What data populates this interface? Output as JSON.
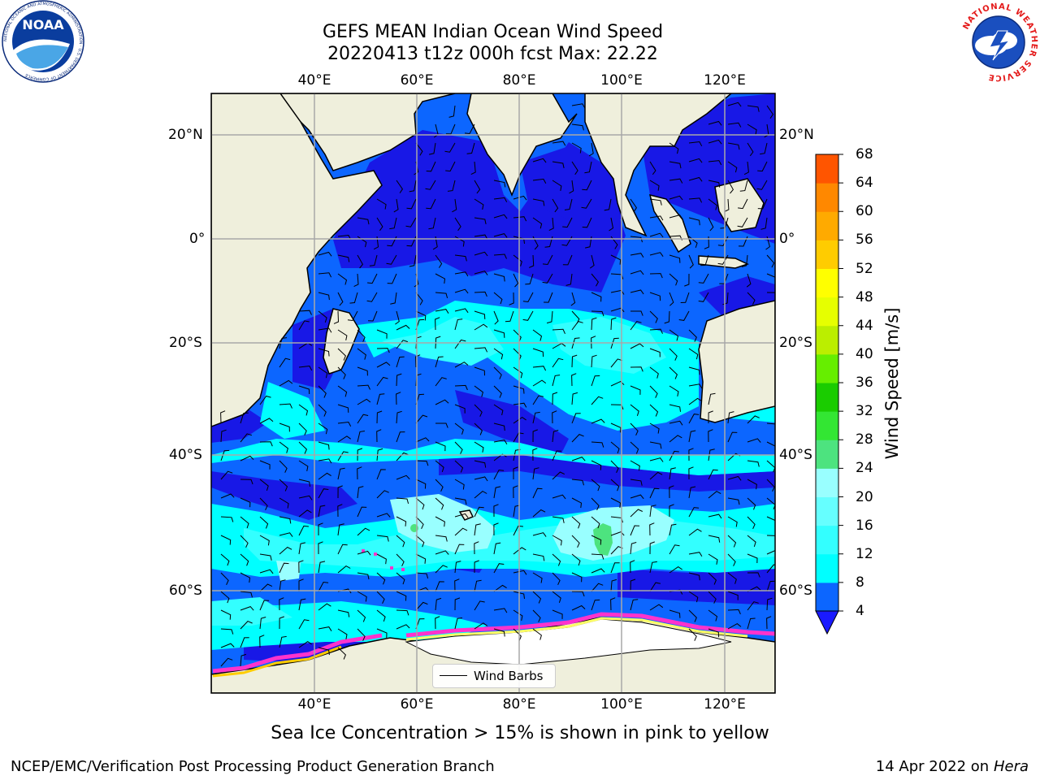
{
  "title": {
    "line1": "GEFS MEAN Indian Ocean Wind Speed",
    "line2": "20220413 t12z 000h fcst   Max: 22.22"
  },
  "map": {
    "lon_ticks": [
      "40°E",
      "60°E",
      "80°E",
      "100°E",
      "120°E"
    ],
    "lat_ticks": [
      "20°N",
      "0°",
      "20°S",
      "40°S",
      "60°S"
    ],
    "extent": {
      "lon": [
        20,
        130
      ],
      "lat": [
        -75,
        27
      ]
    },
    "land_color": "#efefdc",
    "ice_colors": [
      "#ff33cc",
      "#ff88aa",
      "#ffcc00",
      "#ffff66"
    ],
    "legend_label": "Wind Barbs"
  },
  "colorbar": {
    "label": "Wind Speed [m/s]",
    "levels": [
      "4",
      "8",
      "12",
      "16",
      "20",
      "24",
      "28",
      "32",
      "36",
      "40",
      "44",
      "48",
      "52",
      "56",
      "60",
      "64",
      "68"
    ],
    "colors": [
      "#0c66ff",
      "#00ffff",
      "#33ffff",
      "#66ffff",
      "#99ffff",
      "#4de37f",
      "#33e633",
      "#1acc00",
      "#66ee00",
      "#bbee00",
      "#e6ff00",
      "#ffff00",
      "#ffcc00",
      "#ffaa00",
      "#ff8800",
      "#ff5500",
      "#ff3300",
      "#ff0000"
    ],
    "extend_color": "#1a1aff"
  },
  "logos": {
    "noaa": "NOAA",
    "noaa_ring": "NATIONAL OCEANIC AND ATMOSPHERIC ADMINISTRATION · U.S. DEPARTMENT OF COMMERCE",
    "nws_ring": "NATIONAL WEATHER SERVICE"
  },
  "footer": {
    "note": "Sea Ice Concentration > 15% is shown in pink to yellow",
    "left": "NCEP/EMC/Verification Post Processing Product Generation Branch",
    "date": "14 Apr 2022 on ",
    "host": "Hera"
  }
}
